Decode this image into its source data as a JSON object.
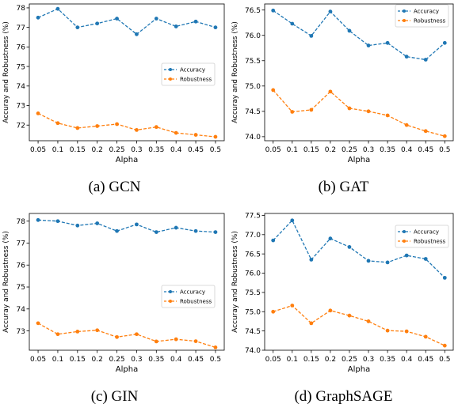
{
  "colors": {
    "accuracy": "#1f77b4",
    "robustness": "#ff7f0e"
  },
  "chart_data": [
    {
      "type": "line",
      "caption": "(a)  GCN",
      "x": [
        0.05,
        0.1,
        0.15,
        0.2,
        0.25,
        0.3,
        0.35,
        0.4,
        0.45,
        0.5
      ],
      "x_ticks": [
        "0.05",
        "0.1",
        "0.15",
        "0.2",
        "0.25",
        "0.3",
        "0.35",
        "0.4",
        "0.45",
        "0.5"
      ],
      "xlabel": "Alpha",
      "ylabel": "Accuray and Robustness (%)",
      "ylim": [
        71.2,
        78.2
      ],
      "y_ticks": [
        "72",
        "73",
        "74",
        "75",
        "76",
        "77",
        "78"
      ],
      "legend_position": "center-right",
      "grid": false,
      "series": [
        {
          "name": "Accuracy",
          "values": [
            77.5,
            77.95,
            77.0,
            77.2,
            77.45,
            76.65,
            77.45,
            77.05,
            77.3,
            77.0
          ]
        },
        {
          "name": "Robustness",
          "values": [
            72.6,
            72.1,
            71.85,
            71.95,
            72.05,
            71.75,
            71.9,
            71.6,
            71.5,
            71.4
          ]
        }
      ]
    },
    {
      "type": "line",
      "caption": "(b)  GAT",
      "x": [
        0.05,
        0.1,
        0.15,
        0.2,
        0.25,
        0.3,
        0.35,
        0.4,
        0.45,
        0.5
      ],
      "x_ticks": [
        "0.05",
        "0.1",
        "0.15",
        "0.2",
        "0.25",
        "0.3",
        "0.35",
        "0.4",
        "0.45",
        "0.5"
      ],
      "xlabel": "Alpha",
      "ylabel": "Accuray and Robustness (%)",
      "ylim": [
        73.92,
        76.62
      ],
      "y_ticks": [
        "74.0",
        "74.5",
        "75.0",
        "75.5",
        "76.0",
        "76.5"
      ],
      "legend_position": "top-right",
      "grid": false,
      "series": [
        {
          "name": "Accuracy",
          "values": [
            76.49,
            76.23,
            75.99,
            76.47,
            76.09,
            75.8,
            75.85,
            75.58,
            75.52,
            75.85
          ]
        },
        {
          "name": "Robustness",
          "values": [
            74.92,
            74.49,
            74.53,
            74.89,
            74.56,
            74.5,
            74.42,
            74.23,
            74.11,
            74.01
          ]
        }
      ]
    },
    {
      "type": "line",
      "caption": "(c)  GIN",
      "x": [
        0.05,
        0.1,
        0.15,
        0.2,
        0.25,
        0.3,
        0.35,
        0.4,
        0.45,
        0.5
      ],
      "x_ticks": [
        "0.05",
        "0.1",
        "0.15",
        "0.2",
        "0.25",
        "0.3",
        "0.35",
        "0.4",
        "0.45",
        "0.5"
      ],
      "xlabel": "Alpha",
      "ylabel": "Accuray and Robustness (%)",
      "ylim": [
        72.12,
        78.35
      ],
      "y_ticks": [
        "73",
        "74",
        "75",
        "76",
        "77",
        "78"
      ],
      "legend_position": "center-right",
      "grid": false,
      "series": [
        {
          "name": "Accuracy",
          "values": [
            78.05,
            78.0,
            77.8,
            77.9,
            77.55,
            77.85,
            77.5,
            77.7,
            77.55,
            77.5
          ]
        },
        {
          "name": "Robustness",
          "values": [
            73.35,
            72.85,
            72.97,
            73.03,
            72.72,
            72.85,
            72.52,
            72.62,
            72.53,
            72.25
          ]
        }
      ]
    },
    {
      "type": "line",
      "caption": "(d)  GraphSAGE",
      "x": [
        0.05,
        0.1,
        0.15,
        0.2,
        0.25,
        0.3,
        0.35,
        0.4,
        0.45,
        0.5
      ],
      "x_ticks": [
        "0.05",
        "0.1",
        "0.15",
        "0.2",
        "0.25",
        "0.3",
        "0.35",
        "0.4",
        "0.45",
        "0.5"
      ],
      "xlabel": "Alpha",
      "ylabel": "Accuray and Robustness (%)",
      "ylim": [
        74.0,
        77.55
      ],
      "y_ticks": [
        "74.0",
        "74.5",
        "75.0",
        "75.5",
        "76.0",
        "76.5",
        "77.0",
        "77.5"
      ],
      "legend_position": "top-right",
      "grid": false,
      "series": [
        {
          "name": "Accuracy",
          "values": [
            76.85,
            77.37,
            76.35,
            76.9,
            76.68,
            76.32,
            76.28,
            76.46,
            76.37,
            75.88
          ]
        },
        {
          "name": "Robustness",
          "values": [
            75.0,
            75.16,
            74.7,
            75.03,
            74.9,
            74.75,
            74.51,
            74.49,
            74.35,
            74.12
          ]
        }
      ]
    }
  ]
}
